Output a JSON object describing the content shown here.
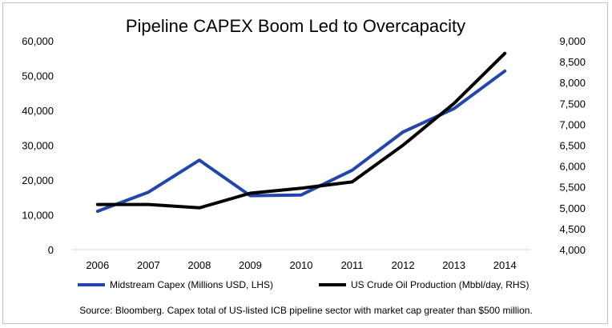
{
  "chart_data": {
    "type": "line",
    "title": "Pipeline CAPEX Boom Led to Overcapacity",
    "categories": [
      "2006",
      "2007",
      "2008",
      "2009",
      "2010",
      "2011",
      "2012",
      "2013",
      "2014"
    ],
    "left_axis": {
      "ylim": [
        0,
        60000
      ],
      "ticks": [
        0,
        10000,
        20000,
        30000,
        40000,
        50000,
        60000
      ],
      "tick_labels": [
        "0",
        "10,000",
        "20,000",
        "30,000",
        "40,000",
        "50,000",
        "60,000"
      ]
    },
    "right_axis": {
      "ylim": [
        4000,
        9000
      ],
      "ticks": [
        4000,
        4500,
        5000,
        5500,
        6000,
        6500,
        7000,
        7500,
        8000,
        8500,
        9000
      ],
      "tick_labels": [
        "4,000",
        "4,500",
        "5,000",
        "5,500",
        "6,000",
        "6,500",
        "7,000",
        "7,500",
        "8,000",
        "8,500",
        "9,000"
      ]
    },
    "series": [
      {
        "name": "Midstream Capex (Millions USD, LHS)",
        "axis": "left",
        "color": "#2446a8",
        "values": [
          11000,
          16500,
          25700,
          15500,
          15700,
          22800,
          33800,
          40500,
          51300
        ]
      },
      {
        "name": "US Crude Oil Production (Mbbl/day, RHS)",
        "axis": "right",
        "color": "#000000",
        "values": [
          5080,
          5080,
          5000,
          5350,
          5470,
          5620,
          6500,
          7500,
          8700
        ]
      }
    ],
    "legend_position": "bottom",
    "grid": false,
    "source": "Source: Bloomberg. Capex total of US-listed ICB pipeline sector with market cap greater than $500 million."
  }
}
